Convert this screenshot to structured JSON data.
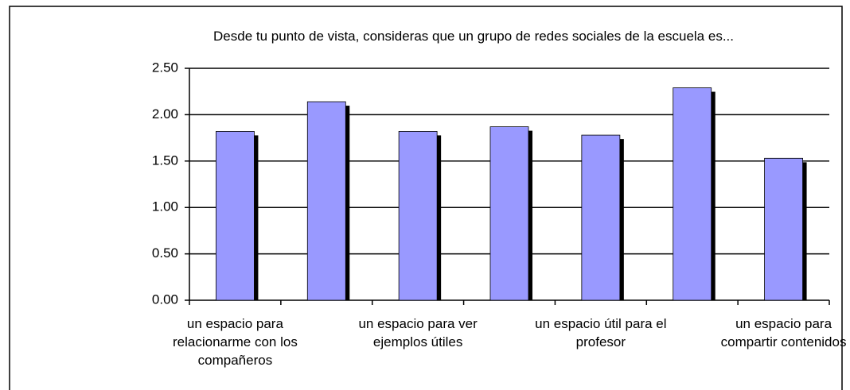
{
  "chart_data": {
    "type": "bar",
    "title": "Desde tu punto de vista, consideras que un grupo de redes sociales de la escuela es...",
    "categories": [
      "un espacio para relacionarme con los compañeros",
      null,
      "un espacio para ver ejemplos útiles",
      null,
      "un espacio útil para el profesor",
      null,
      "un espacio para compartir contenidos"
    ],
    "values": [
      1.82,
      2.14,
      1.82,
      1.87,
      1.78,
      2.29,
      1.53
    ],
    "color": "#9999ff",
    "ylim": [
      0,
      2.5
    ],
    "yticks": [
      {
        "value": 0,
        "label": "0.00"
      },
      {
        "value": 0.5,
        "label": "0.50"
      },
      {
        "value": 1,
        "label": "1.00"
      },
      {
        "value": 1.5,
        "label": "1.50"
      },
      {
        "value": 2,
        "label": "2.00"
      },
      {
        "value": 2.5,
        "label": "2.50"
      }
    ],
    "grid": true
  }
}
